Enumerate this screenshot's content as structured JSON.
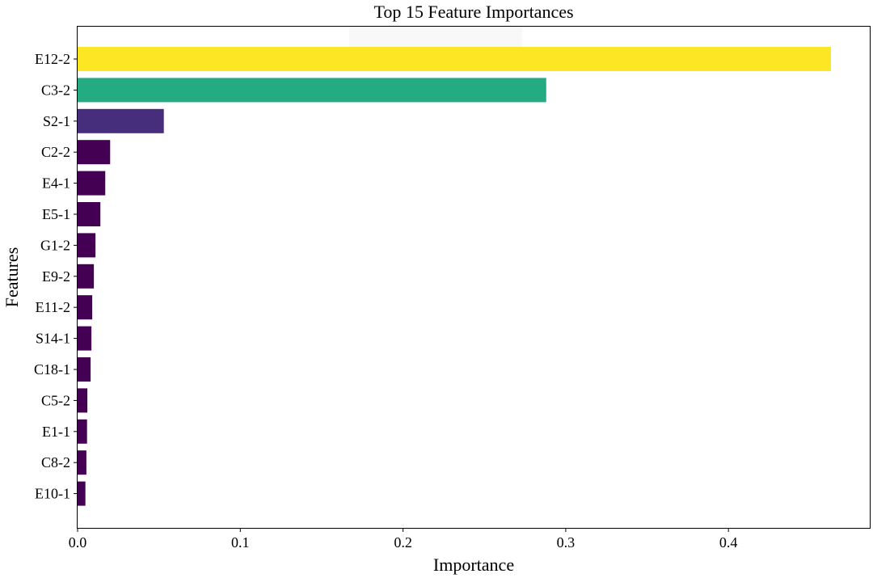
{
  "chart_data": {
    "type": "bar",
    "orientation": "horizontal",
    "title": "Top 15 Feature Importances",
    "xlabel": "Importance",
    "ylabel": "Features",
    "xlim": [
      0,
      0.485
    ],
    "xticks": [
      0.0,
      0.1,
      0.2,
      0.3,
      0.4
    ],
    "xtick_labels": [
      "0.0",
      "0.1",
      "0.2",
      "0.3",
      "0.4"
    ],
    "grid": false,
    "colormap": "viridis",
    "categories": [
      "E12-2",
      "C3-2",
      "S2-1",
      "C2-2",
      "E4-1",
      "E5-1",
      "G1-2",
      "E9-2",
      "E11-2",
      "S14-1",
      "C18-1",
      "C5-2",
      "E1-1",
      "C8-2",
      "E10-1"
    ],
    "values": [
      0.463,
      0.288,
      0.053,
      0.02,
      0.017,
      0.014,
      0.011,
      0.01,
      0.009,
      0.0085,
      0.008,
      0.006,
      0.0058,
      0.0054,
      0.0048
    ],
    "colors": [
      "#fde725",
      "#25ab82",
      "#472e7c",
      "#440154",
      "#440154",
      "#440154",
      "#440154",
      "#440154",
      "#440154",
      "#440154",
      "#440154",
      "#440154",
      "#440154",
      "#440154",
      "#440154"
    ]
  }
}
